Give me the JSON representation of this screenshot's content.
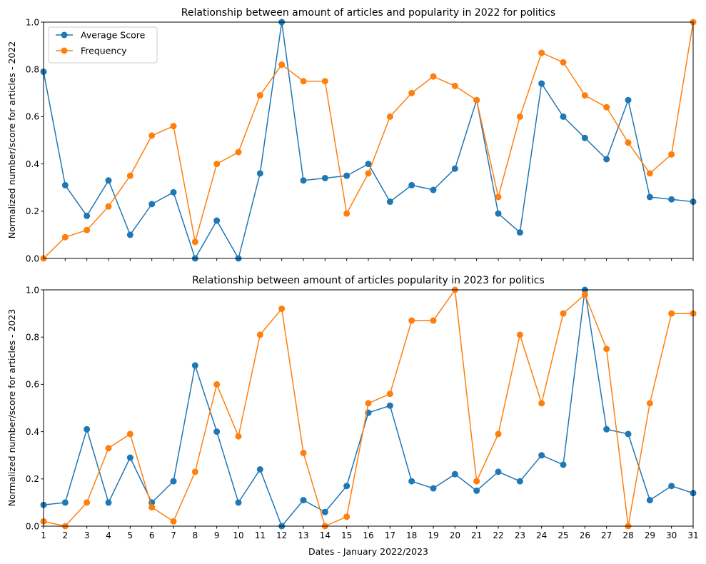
{
  "colors": {
    "avg": "#1f77b4",
    "freq": "#ff7f0e",
    "axis": "#000000",
    "legend_border": "#cccccc"
  },
  "chart_data": [
    {
      "type": "line",
      "title": "Relationship between amount of articles and popularity in 2022 for politics",
      "xlabel": "",
      "ylabel": "Normalized number/score for articles - 2022",
      "x": [
        1,
        2,
        3,
        4,
        5,
        6,
        7,
        8,
        9,
        10,
        11,
        12,
        13,
        14,
        15,
        16,
        17,
        18,
        19,
        20,
        21,
        22,
        23,
        24,
        25,
        26,
        27,
        28,
        29,
        30,
        31
      ],
      "xlim": [
        1,
        31
      ],
      "ylim": [
        0,
        1
      ],
      "yticks": [
        "0.0",
        "0.2",
        "0.4",
        "0.6",
        "0.8",
        "1.0"
      ],
      "xticklabels_visible": false,
      "grid": false,
      "legend": "top-left",
      "series": [
        {
          "name": "Average Score",
          "color": "#1f77b4",
          "values": [
            0.79,
            0.31,
            0.18,
            0.33,
            0.1,
            0.23,
            0.28,
            0.0,
            0.16,
            0.0,
            0.36,
            1.0,
            0.33,
            0.34,
            0.35,
            0.4,
            0.24,
            0.31,
            0.29,
            0.38,
            0.67,
            0.19,
            0.11,
            0.74,
            0.6,
            0.51,
            0.42,
            0.67,
            0.26,
            0.25,
            0.24
          ]
        },
        {
          "name": "Frequency",
          "color": "#ff7f0e",
          "values": [
            0.0,
            0.09,
            0.12,
            0.22,
            0.35,
            0.52,
            0.56,
            0.07,
            0.4,
            0.45,
            0.69,
            0.82,
            0.75,
            0.75,
            0.19,
            0.36,
            0.6,
            0.7,
            0.77,
            0.73,
            0.67,
            0.26,
            0.6,
            0.87,
            0.83,
            0.69,
            0.64,
            0.49,
            0.36,
            0.44,
            1.0
          ]
        }
      ]
    },
    {
      "type": "line",
      "title": "Relationship between amount of articles popularity in 2023 for politics",
      "xlabel": "Dates - January 2022/2023",
      "ylabel": "Normalized number/score for articles - 2023",
      "x": [
        1,
        2,
        3,
        4,
        5,
        6,
        7,
        8,
        9,
        10,
        11,
        12,
        13,
        14,
        15,
        16,
        17,
        18,
        19,
        20,
        21,
        22,
        23,
        24,
        25,
        26,
        27,
        28,
        29,
        30,
        31
      ],
      "xlim": [
        1,
        31
      ],
      "ylim": [
        0,
        1
      ],
      "yticks": [
        "0.0",
        "0.2",
        "0.4",
        "0.6",
        "0.8",
        "1.0"
      ],
      "xticklabels_visible": true,
      "grid": false,
      "legend": "none",
      "series": [
        {
          "name": "Average Score",
          "color": "#1f77b4",
          "values": [
            0.09,
            0.1,
            0.41,
            0.1,
            0.29,
            0.1,
            0.19,
            0.68,
            0.4,
            0.1,
            0.24,
            0.0,
            0.11,
            0.06,
            0.17,
            0.48,
            0.51,
            0.19,
            0.16,
            0.22,
            0.15,
            0.23,
            0.19,
            0.3,
            0.26,
            1.0,
            0.41,
            0.39,
            0.11,
            0.17,
            0.14
          ]
        },
        {
          "name": "Frequency",
          "color": "#ff7f0e",
          "values": [
            0.02,
            0.0,
            0.1,
            0.33,
            0.39,
            0.08,
            0.02,
            0.23,
            0.6,
            0.38,
            0.81,
            0.92,
            0.31,
            0.0,
            0.04,
            0.52,
            0.56,
            0.87,
            0.87,
            1.0,
            0.19,
            0.39,
            0.81,
            0.52,
            0.9,
            0.98,
            0.75,
            0.0,
            0.52,
            0.9,
            0.9
          ]
        }
      ]
    }
  ]
}
